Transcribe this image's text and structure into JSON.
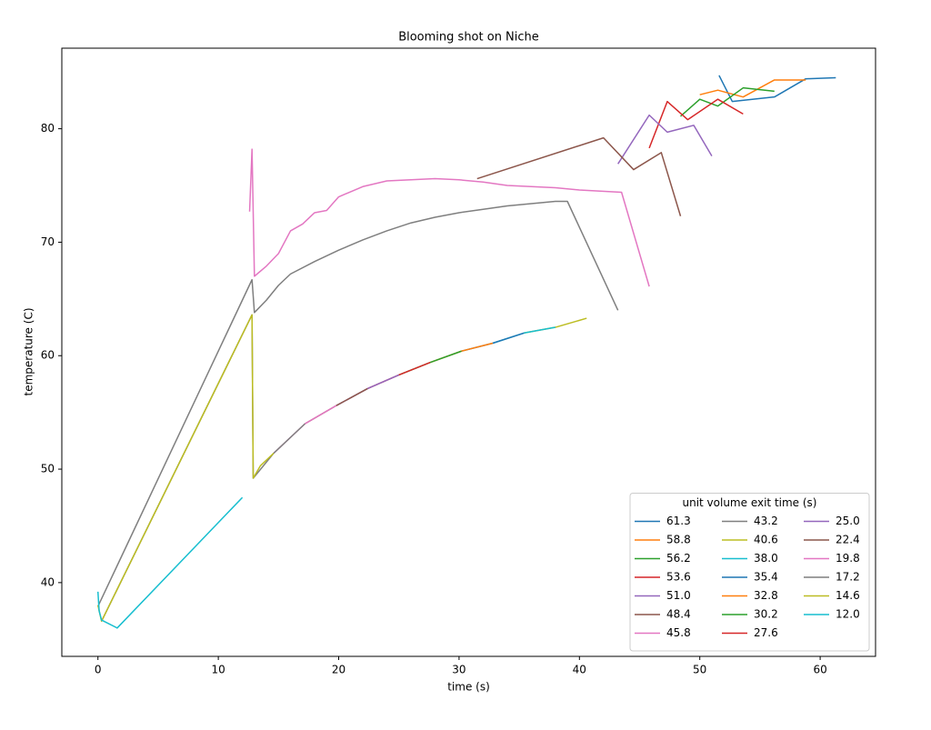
{
  "chart_data": {
    "type": "line",
    "title": "Blooming shot on Niche",
    "xlabel": "time (s)",
    "ylabel": "temperature (C)",
    "xlim": [
      -3.0,
      64.6
    ],
    "ylim": [
      33.5,
      87.1
    ],
    "xticks": [
      0,
      10,
      20,
      30,
      40,
      50,
      60
    ],
    "yticks": [
      40,
      50,
      60,
      70,
      80
    ],
    "grid": false,
    "legend": "lower right",
    "legend_title": "unit volume exit time (s)",
    "legend_columns": 3,
    "series": [
      {
        "name": "61.3",
        "color": "#1f77b4",
        "x": [
          51.6,
          52.7,
          56.2,
          58.8,
          61.3
        ],
        "values": [
          84.7,
          82.4,
          82.8,
          84.4,
          84.5
        ]
      },
      {
        "name": "58.8",
        "color": "#ff7f0e",
        "x": [
          50.0,
          51.5,
          53.6,
          56.2,
          58.8
        ],
        "values": [
          83.0,
          83.4,
          82.8,
          84.3,
          84.3
        ]
      },
      {
        "name": "56.2",
        "color": "#2ca02c",
        "x": [
          48.4,
          50.0,
          51.5,
          53.6,
          56.2
        ],
        "values": [
          81.1,
          82.6,
          82.0,
          83.6,
          83.3
        ]
      },
      {
        "name": "53.6",
        "color": "#d62728",
        "x": [
          45.8,
          47.3,
          49.0,
          51.5,
          53.6
        ],
        "values": [
          78.3,
          82.4,
          80.8,
          82.6,
          81.3
        ]
      },
      {
        "name": "51.0",
        "color": "#9467bd",
        "x": [
          43.2,
          45.8,
          47.3,
          49.5,
          51.0
        ],
        "values": [
          76.9,
          81.2,
          79.7,
          80.3,
          77.6
        ]
      },
      {
        "name": "48.4",
        "color": "#8c564b",
        "x": [
          31.5,
          42.0,
          44.5,
          46.8,
          48.4
        ],
        "values": [
          75.6,
          79.2,
          76.4,
          77.9,
          72.3
        ]
      },
      {
        "name": "45.8",
        "color": "#e377c2",
        "x": [
          12.6,
          12.8,
          13.0,
          14.0,
          15.0,
          16.0,
          17.0,
          18.0,
          19.0,
          20.0,
          22.0,
          24.0,
          26.0,
          28.0,
          30.0,
          32.0,
          34.0,
          36.0,
          38.0,
          40.0,
          43.5,
          45.8
        ],
        "values": [
          72.7,
          78.2,
          67.0,
          67.9,
          69.0,
          71.0,
          71.6,
          72.6,
          72.8,
          74.0,
          74.9,
          75.4,
          75.5,
          75.6,
          75.5,
          75.3,
          75.0,
          74.9,
          74.8,
          74.6,
          74.4,
          66.1
        ]
      },
      {
        "name": "43.2",
        "color": "#7f7f7f",
        "x": [
          0.0,
          12.8,
          13.0,
          14.0,
          15.0,
          16.0,
          18.0,
          20.0,
          22.0,
          24.0,
          26.0,
          28.0,
          30.0,
          32.0,
          34.0,
          36.0,
          38.0,
          39.0,
          43.2
        ],
        "values": [
          37.9,
          66.7,
          63.8,
          64.9,
          66.2,
          67.2,
          68.3,
          69.3,
          70.2,
          71.0,
          71.7,
          72.2,
          72.6,
          72.9,
          73.2,
          73.4,
          73.6,
          73.6,
          64.0
        ]
      },
      {
        "name": "40.6",
        "color": "#bcbd22",
        "x": [
          35.4,
          38.0,
          40.6
        ],
        "values": [
          62.0,
          62.5,
          63.3
        ]
      },
      {
        "name": "38.0",
        "color": "#17becf",
        "x": [
          32.8,
          35.4,
          38.0
        ],
        "values": [
          61.1,
          62.0,
          62.5
        ]
      },
      {
        "name": "35.4",
        "color": "#1f77b4",
        "x": [
          30.2,
          32.8,
          35.4
        ],
        "values": [
          60.4,
          61.1,
          62.0
        ]
      },
      {
        "name": "32.8",
        "color": "#ff7f0e",
        "x": [
          27.6,
          30.2,
          32.8
        ],
        "values": [
          59.4,
          60.4,
          61.1
        ]
      },
      {
        "name": "30.2",
        "color": "#2ca02c",
        "x": [
          25.0,
          27.6,
          30.2
        ],
        "values": [
          58.3,
          59.4,
          60.4
        ]
      },
      {
        "name": "27.6",
        "color": "#d62728",
        "x": [
          22.4,
          25.0,
          27.6
        ],
        "values": [
          57.1,
          58.3,
          59.4
        ]
      },
      {
        "name": "25.0",
        "color": "#9467bd",
        "x": [
          19.8,
          22.4,
          25.0
        ],
        "values": [
          55.6,
          57.1,
          58.3
        ]
      },
      {
        "name": "22.4",
        "color": "#8c564b",
        "x": [
          17.2,
          19.8,
          22.4
        ],
        "values": [
          54.0,
          55.6,
          57.1
        ]
      },
      {
        "name": "19.8",
        "color": "#e377c2",
        "x": [
          14.6,
          17.2,
          19.8
        ],
        "values": [
          51.4,
          54.0,
          55.6
        ]
      },
      {
        "name": "17.2",
        "color": "#7f7f7f",
        "x": [
          0.3,
          12.8,
          12.9,
          14.6,
          17.2
        ],
        "values": [
          36.6,
          63.6,
          49.2,
          51.4,
          54.0
        ]
      },
      {
        "name": "14.6",
        "color": "#bcbd22",
        "x": [
          0.0,
          0.3,
          12.8,
          12.9,
          13.5,
          14.6
        ],
        "values": [
          38.0,
          36.6,
          63.6,
          49.2,
          50.3,
          51.4
        ]
      },
      {
        "name": "12.0",
        "color": "#17becf",
        "x": [
          0.0,
          0.1,
          0.3,
          1.6,
          12.0
        ],
        "values": [
          39.2,
          37.5,
          36.7,
          36.0,
          47.5
        ]
      }
    ]
  }
}
